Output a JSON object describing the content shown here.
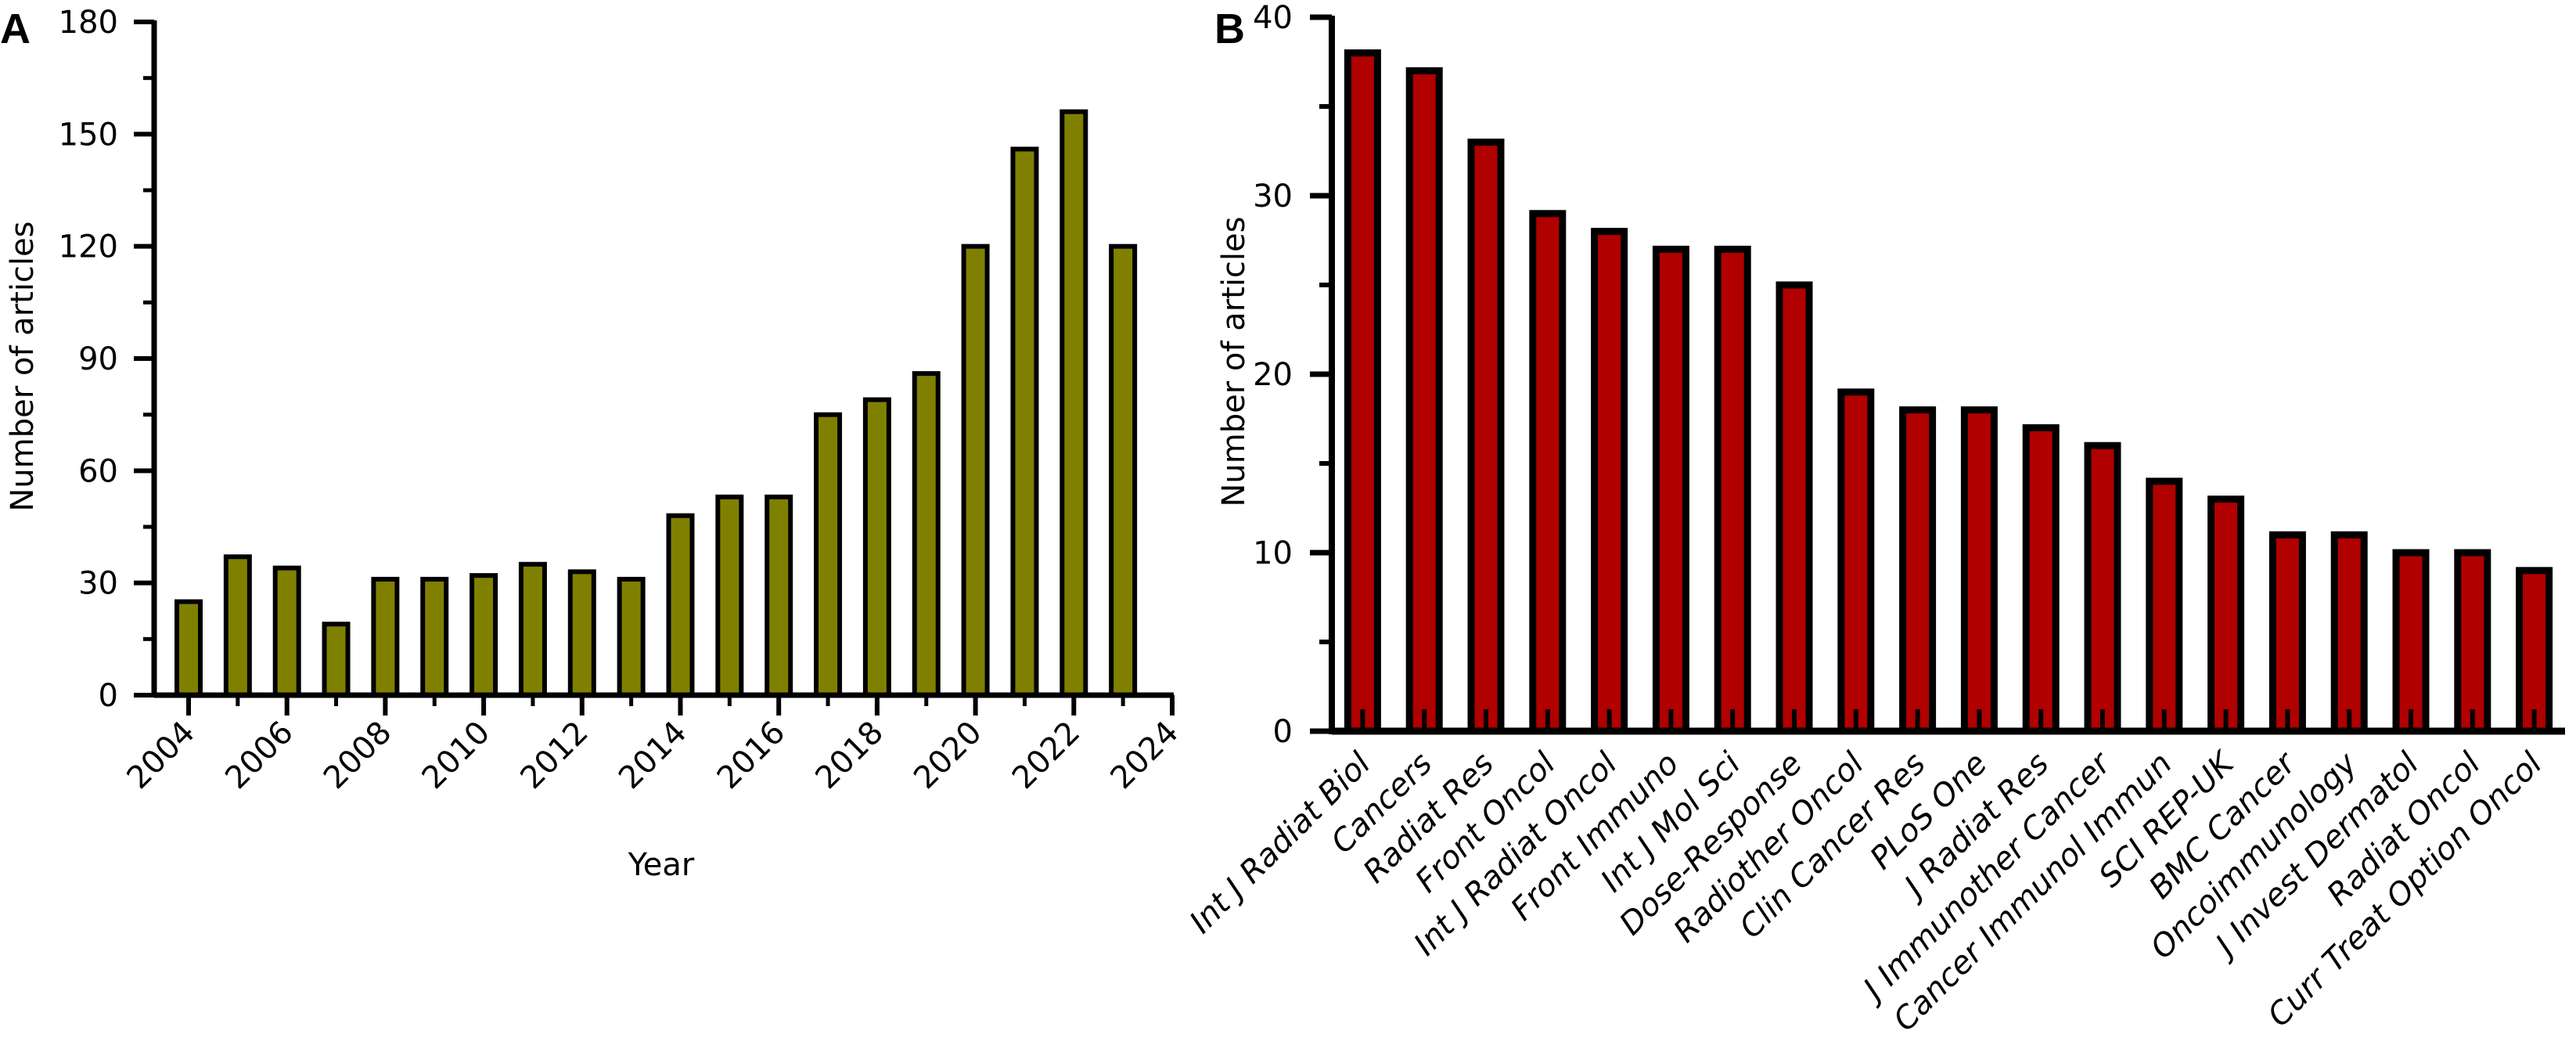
{
  "panels": {
    "a_label": "A",
    "b_label": "B"
  },
  "chart_data": [
    {
      "type": "bar",
      "panel": "A",
      "title": "",
      "xlabel": "Year",
      "ylabel": "Number of articles",
      "x": [
        2004,
        2005,
        2006,
        2007,
        2008,
        2009,
        2010,
        2011,
        2012,
        2013,
        2014,
        2015,
        2016,
        2017,
        2018,
        2019,
        2020,
        2021,
        2022,
        2023
      ],
      "values": [
        25,
        37,
        34,
        19,
        31,
        31,
        32,
        35,
        33,
        31,
        48,
        53,
        53,
        75,
        79,
        86,
        120,
        146,
        156,
        120
      ],
      "xlim": [
        2003.3,
        2024
      ],
      "ylim": [
        0,
        180
      ],
      "x_ticks": [
        2004,
        2006,
        2008,
        2010,
        2012,
        2014,
        2016,
        2018,
        2020,
        2022,
        2024
      ],
      "y_ticks": [
        0,
        30,
        60,
        90,
        120,
        150,
        180
      ],
      "bar_color": "#808000",
      "grid": false,
      "legend": "none"
    },
    {
      "type": "bar",
      "panel": "B",
      "title": "",
      "xlabel": "",
      "ylabel": "Number of articles",
      "categories": [
        "Int J Radiat Biol",
        "Cancers",
        "Radiat Res",
        "Front Oncol",
        "Int J Radiat Oncol",
        "Front Immuno",
        "Int J Mol Sci",
        "Dose-Response",
        "Radiother Oncol",
        "Clin Cancer Res",
        "PLoS One",
        "J Radiat Res",
        "J Immunother Cancer",
        "Cancer Immunol Immun",
        "SCI REP-UK",
        "BMC Cancer",
        "Oncoimmunology",
        "J Invest Dermatol",
        "Radiat Oncol",
        "Curr Treat Option Oncol"
      ],
      "values": [
        38,
        37,
        33,
        29,
        28,
        27,
        27,
        25,
        19,
        18,
        18,
        17,
        16,
        14,
        13,
        11,
        11,
        10,
        10,
        9
      ],
      "ylim": [
        0,
        40
      ],
      "y_ticks": [
        0,
        10,
        20,
        30,
        40
      ],
      "bar_color": "#b00000",
      "grid": false,
      "legend": "none"
    }
  ]
}
